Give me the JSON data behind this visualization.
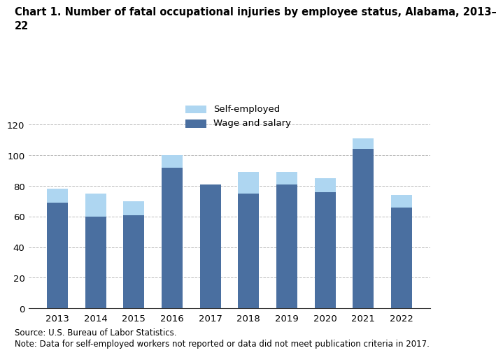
{
  "years": [
    2013,
    2014,
    2015,
    2016,
    2017,
    2018,
    2019,
    2020,
    2021,
    2022
  ],
  "wage_and_salary": [
    69,
    60,
    61,
    92,
    81,
    75,
    81,
    76,
    104,
    66
  ],
  "self_employed": [
    9,
    15,
    9,
    8,
    0,
    14,
    8,
    9,
    7,
    8
  ],
  "wage_color": "#4a6fa0",
  "self_color": "#aed6f1",
  "title": "Chart 1. Number of fatal occupational injuries by employee status, Alabama, 2013–\n22",
  "legend_self": "Self-employed",
  "legend_wage": "Wage and salary",
  "ylim": [
    0,
    120
  ],
  "yticks": [
    0,
    20,
    40,
    60,
    80,
    100,
    120
  ],
  "source_text": "Source: U.S. Bureau of Labor Statistics.",
  "note_text": "Note: Data for self-employed workers not reported or data did not meet publication criteria in 2017.",
  "bar_width": 0.55
}
